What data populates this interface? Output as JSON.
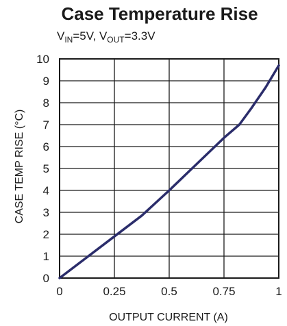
{
  "chart_data": {
    "type": "line",
    "title": "Case Temperature Rise",
    "subtitle": {
      "vin_prefix": "V",
      "vin_sub": "IN",
      "vin_value": "=5V, ",
      "vout_prefix": "V",
      "vout_sub": "OUT",
      "vout_value": "=3.3V"
    },
    "xlabel": "OUTPUT CURRENT (A)",
    "ylabel": "CASE TEMP RISE (°C)",
    "xlim": [
      0,
      1
    ],
    "ylim": [
      0,
      10
    ],
    "x_ticks": [
      {
        "value": 0,
        "label": "0"
      },
      {
        "value": 0.25,
        "label": "0.25"
      },
      {
        "value": 0.5,
        "label": "0.5"
      },
      {
        "value": 0.75,
        "label": "0.75"
      },
      {
        "value": 1,
        "label": "1"
      }
    ],
    "y_ticks": [
      {
        "value": 0,
        "label": "0"
      },
      {
        "value": 1,
        "label": "1"
      },
      {
        "value": 2,
        "label": "2"
      },
      {
        "value": 3,
        "label": "3"
      },
      {
        "value": 4,
        "label": "4"
      },
      {
        "value": 5,
        "label": "5"
      },
      {
        "value": 6,
        "label": "6"
      },
      {
        "value": 7,
        "label": "7"
      },
      {
        "value": 8,
        "label": "8"
      },
      {
        "value": 9,
        "label": "9"
      },
      {
        "value": 10,
        "label": "10"
      }
    ],
    "x_grid": [
      0.25,
      0.5,
      0.75
    ],
    "y_grid": [
      1,
      2,
      3,
      4,
      5,
      6,
      7,
      8,
      9
    ],
    "grid": true,
    "series": [
      {
        "color": "#2b2d6b",
        "points": [
          [
            0,
            0
          ],
          [
            0.125,
            0.95
          ],
          [
            0.25,
            1.9
          ],
          [
            0.375,
            2.85
          ],
          [
            0.5,
            4.0
          ],
          [
            0.625,
            5.2
          ],
          [
            0.75,
            6.4
          ],
          [
            0.82,
            7.0
          ],
          [
            0.875,
            7.75
          ],
          [
            0.94,
            8.7
          ],
          [
            1.0,
            9.7
          ]
        ]
      }
    ]
  }
}
